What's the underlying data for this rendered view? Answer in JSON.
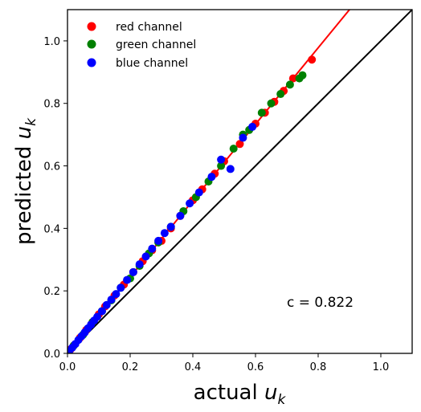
{
  "chart_data": {
    "type": "scatter",
    "title": "",
    "xlabel_text": "actual",
    "xlabel_var": "u",
    "xlabel_sub": "k",
    "ylabel_text": "predicted",
    "ylabel_var": "u",
    "ylabel_sub": "k",
    "xlim": [
      0,
      1.1
    ],
    "ylim": [
      0,
      1.1
    ],
    "xticks": [
      0.0,
      0.2,
      0.4,
      0.6,
      0.8,
      1.0
    ],
    "yticks": [
      0.0,
      0.2,
      0.4,
      0.6,
      0.8,
      1.0
    ],
    "xtick_labels": [
      "0.0",
      "0.2",
      "0.4",
      "0.6",
      "0.8",
      "1.0"
    ],
    "ytick_labels": [
      "0.0",
      "0.2",
      "0.4",
      "0.6",
      "0.8",
      "1.0"
    ],
    "grid": false,
    "legend_placement": "top-left",
    "annotation": "c = 0.822",
    "reference_line": {
      "name": "identity",
      "color": "#000000",
      "x": [
        0,
        1.1
      ],
      "y": [
        0,
        1.1
      ]
    },
    "fit_line": {
      "name": "fit",
      "color": "#ff0000",
      "x": [
        0,
        0.9
      ],
      "y": [
        0,
        1.1
      ]
    },
    "series": [
      {
        "name": "red channel",
        "color": "#ff0000",
        "x": [
          0.01,
          0.02,
          0.04,
          0.06,
          0.08,
          0.1,
          0.12,
          0.15,
          0.18,
          0.21,
          0.24,
          0.27,
          0.3,
          0.33,
          0.36,
          0.4,
          0.43,
          0.47,
          0.5,
          0.55,
          0.6,
          0.63,
          0.66,
          0.69,
          0.72,
          0.78
        ],
        "y": [
          0.013,
          0.025,
          0.05,
          0.075,
          0.1,
          0.125,
          0.15,
          0.185,
          0.22,
          0.26,
          0.295,
          0.33,
          0.36,
          0.4,
          0.44,
          0.49,
          0.525,
          0.575,
          0.615,
          0.67,
          0.735,
          0.77,
          0.805,
          0.84,
          0.88,
          0.94
        ]
      },
      {
        "name": "green channel",
        "color": "#008000",
        "x": [
          0.02,
          0.05,
          0.08,
          0.11,
          0.14,
          0.17,
          0.2,
          0.23,
          0.26,
          0.29,
          0.33,
          0.37,
          0.41,
          0.45,
          0.49,
          0.53,
          0.56,
          0.58,
          0.62,
          0.65,
          0.68,
          0.71,
          0.74,
          0.75
        ],
        "y": [
          0.025,
          0.06,
          0.1,
          0.135,
          0.17,
          0.21,
          0.24,
          0.28,
          0.32,
          0.355,
          0.405,
          0.455,
          0.5,
          0.55,
          0.6,
          0.655,
          0.7,
          0.715,
          0.77,
          0.8,
          0.83,
          0.86,
          0.88,
          0.89
        ]
      },
      {
        "name": "blue channel",
        "color": "#0000ff",
        "x": [
          0.005,
          0.015,
          0.025,
          0.035,
          0.045,
          0.055,
          0.065,
          0.075,
          0.085,
          0.095,
          0.11,
          0.125,
          0.14,
          0.155,
          0.17,
          0.19,
          0.21,
          0.23,
          0.25,
          0.27,
          0.29,
          0.31,
          0.33,
          0.36,
          0.39,
          0.42,
          0.46,
          0.49,
          0.52,
          0.56,
          0.59
        ],
        "y": [
          0.006,
          0.018,
          0.03,
          0.043,
          0.055,
          0.067,
          0.08,
          0.092,
          0.105,
          0.117,
          0.135,
          0.155,
          0.172,
          0.19,
          0.21,
          0.235,
          0.26,
          0.285,
          0.31,
          0.335,
          0.36,
          0.385,
          0.405,
          0.44,
          0.48,
          0.515,
          0.565,
          0.62,
          0.59,
          0.69,
          0.725
        ]
      }
    ]
  }
}
